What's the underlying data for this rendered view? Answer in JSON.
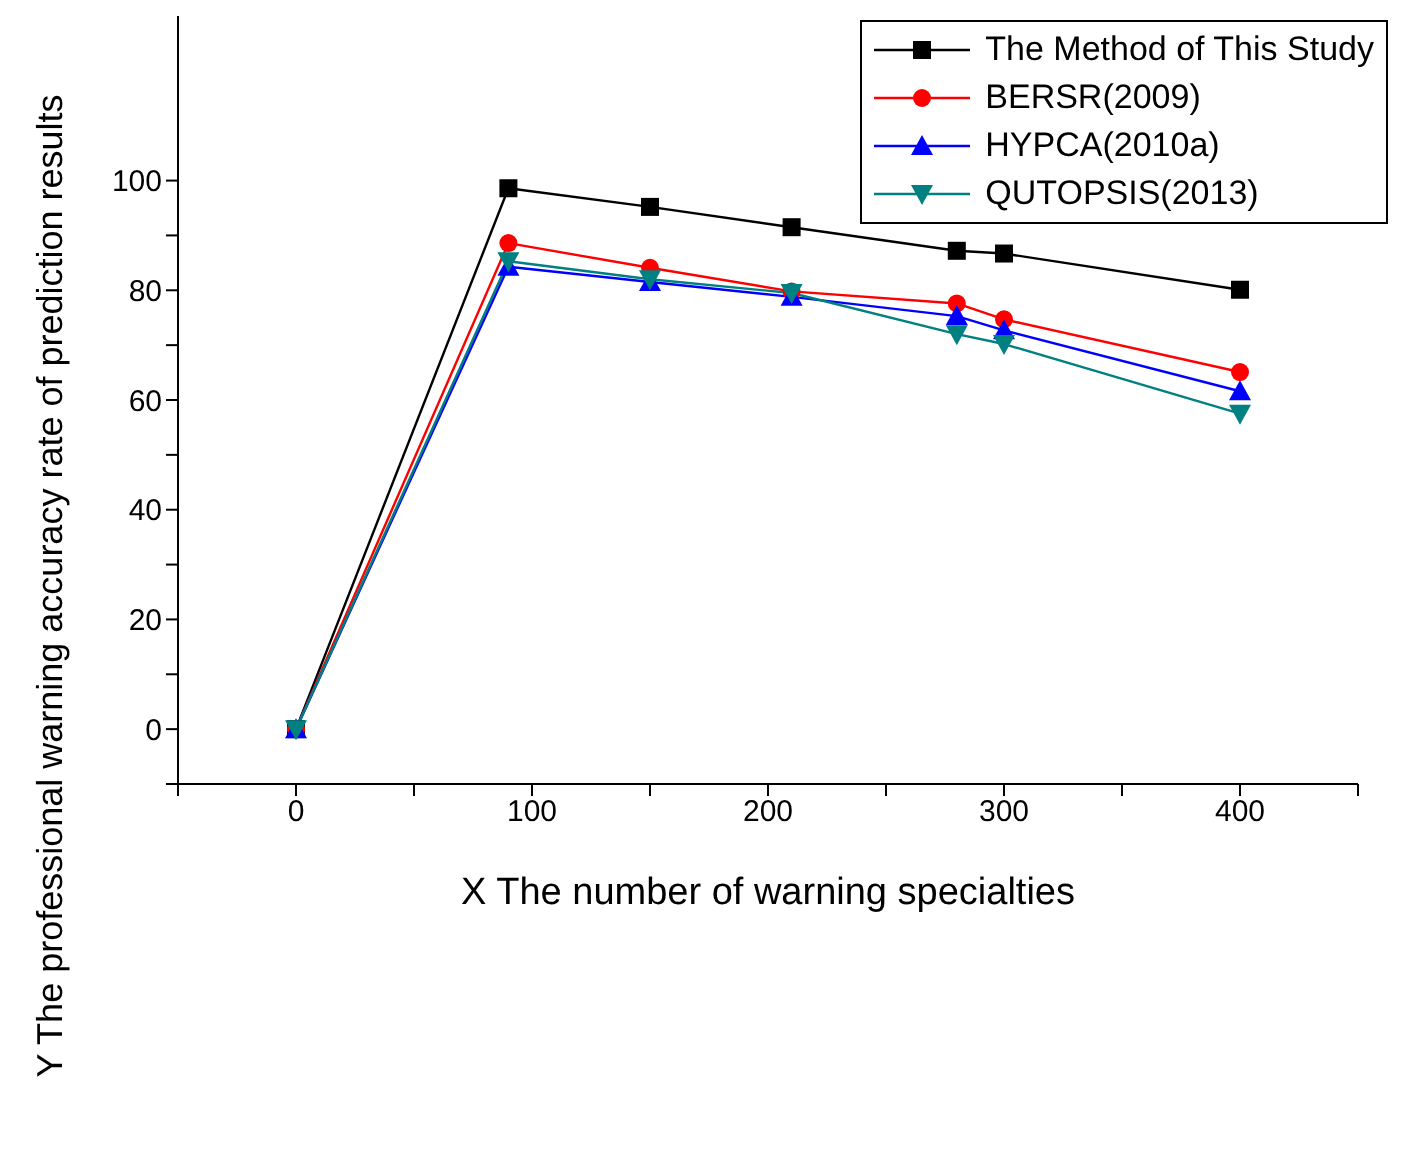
{
  "chart_data": {
    "type": "line",
    "xlabel": "X The number of warning specialties",
    "ylabel": "Y The professional warning accuracy rate of prediction results",
    "x": [
      0,
      90,
      150,
      210,
      280,
      300,
      400
    ],
    "series": [
      {
        "name": "The Method of This Study",
        "color": "#000000",
        "marker": "square",
        "values": [
          0,
          98.6,
          95.2,
          91.5,
          87.2,
          86.7,
          80.1
        ]
      },
      {
        "name": "BERSR(2009)",
        "color": "#ff0000",
        "marker": "circle",
        "values": [
          0,
          88.6,
          84.1,
          79.8,
          77.6,
          74.7,
          65.1
        ]
      },
      {
        "name": "HYPCA(2010a)",
        "color": "#0000ff",
        "marker": "triangle",
        "values": [
          0,
          84.3,
          81.5,
          78.8,
          75.3,
          72.7,
          61.6
        ]
      },
      {
        "name": "QUTOPSIS(2013)",
        "color": "#008080",
        "marker": "triangle-down",
        "values": [
          0,
          85.3,
          82,
          79.5,
          72,
          70.2,
          57.5
        ]
      }
    ],
    "xlim": [
      -50,
      450
    ],
    "xticks": [
      {
        "value": -50,
        "label": null
      },
      0,
      {
        "value": 50,
        "label": null
      },
      100,
      {
        "value": 150,
        "label": null
      },
      200,
      {
        "value": 250,
        "label": null
      },
      300,
      {
        "value": 350,
        "label": null
      },
      400,
      {
        "value": 450,
        "label": null
      }
    ],
    "ylim": [
      -10,
      130
    ],
    "yticks": [
      {
        "value": -10,
        "label": null
      },
      0,
      {
        "value": 10,
        "label": null
      },
      20,
      {
        "value": 30,
        "label": null
      },
      40,
      {
        "value": 50,
        "label": null
      },
      60,
      {
        "value": 70,
        "label": null
      },
      80,
      {
        "value": 90,
        "label": null
      },
      100
    ],
    "grid": false,
    "legend": "top right",
    "line_style": "solid"
  }
}
